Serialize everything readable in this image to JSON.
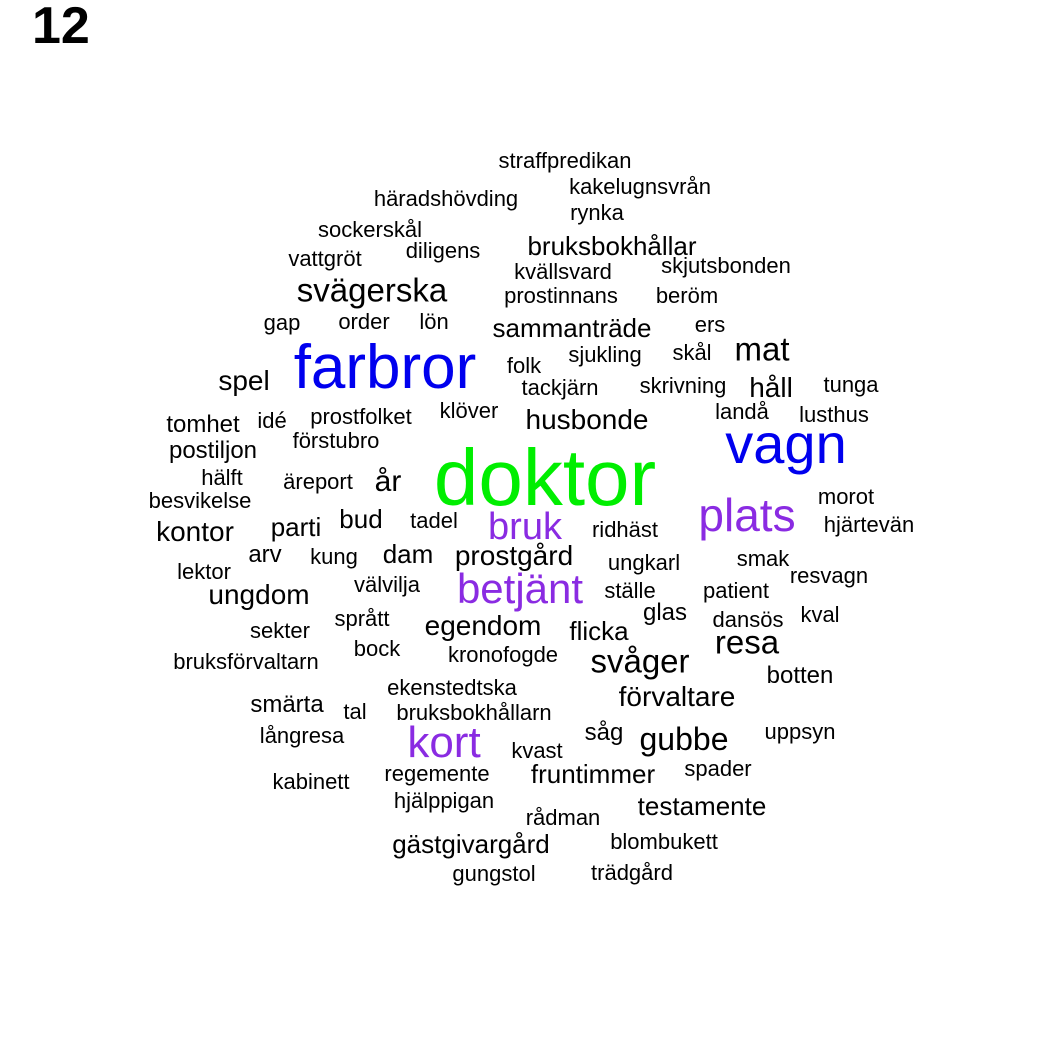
{
  "label": "12",
  "colors": {
    "top": "#00ee00",
    "second": "#0000ee",
    "third": "#8a2be2",
    "rest": "#000000"
  },
  "words": [
    {
      "text": "doktor",
      "tier": "top"
    },
    {
      "text": "farbror",
      "tier": "second"
    },
    {
      "text": "vagn",
      "tier": "second"
    },
    {
      "text": "plats",
      "tier": "third"
    },
    {
      "text": "betjänt",
      "tier": "third"
    },
    {
      "text": "kort",
      "tier": "third"
    },
    {
      "text": "bruk",
      "tier": "third"
    },
    {
      "text": "svägerska",
      "tier": "rest"
    },
    {
      "text": "mat",
      "tier": "rest"
    },
    {
      "text": "resa",
      "tier": "rest"
    },
    {
      "text": "svåger",
      "tier": "rest"
    },
    {
      "text": "husbonde",
      "tier": "rest"
    },
    {
      "text": "förvaltare",
      "tier": "rest"
    },
    {
      "text": "gubbe",
      "tier": "rest"
    },
    {
      "text": "egendom",
      "tier": "rest"
    },
    {
      "text": "prostgård",
      "tier": "rest"
    },
    {
      "text": "kontor",
      "tier": "rest"
    },
    {
      "text": "sammanträde",
      "tier": "rest"
    },
    {
      "text": "testamente",
      "tier": "rest"
    },
    {
      "text": "gästgivargård",
      "tier": "rest"
    },
    {
      "text": "ungdom",
      "tier": "rest"
    },
    {
      "text": "spel",
      "tier": "rest"
    },
    {
      "text": "år",
      "tier": "rest"
    },
    {
      "text": "håll",
      "tier": "rest"
    },
    {
      "text": "fruntimmer",
      "tier": "rest"
    },
    {
      "text": "bruksbokhållar",
      "tier": "rest"
    },
    {
      "text": "dam",
      "tier": "rest"
    },
    {
      "text": "bud",
      "tier": "rest"
    },
    {
      "text": "parti",
      "tier": "rest"
    },
    {
      "text": "flicka",
      "tier": "rest"
    },
    {
      "text": "straffpredikan",
      "tier": "rest"
    },
    {
      "text": "kakelugnsvrån",
      "tier": "rest"
    },
    {
      "text": "häradshövding",
      "tier": "rest"
    },
    {
      "text": "rynka",
      "tier": "rest"
    },
    {
      "text": "sockerskål",
      "tier": "rest"
    },
    {
      "text": "diligens",
      "tier": "rest"
    },
    {
      "text": "vattgröt",
      "tier": "rest"
    },
    {
      "text": "kvällsvard",
      "tier": "rest"
    },
    {
      "text": "skjutsbonden",
      "tier": "rest"
    },
    {
      "text": "prostinnans",
      "tier": "rest"
    },
    {
      "text": "beröm",
      "tier": "rest"
    },
    {
      "text": "gap",
      "tier": "rest"
    },
    {
      "text": "order",
      "tier": "rest"
    },
    {
      "text": "lön",
      "tier": "rest"
    },
    {
      "text": "ers",
      "tier": "rest"
    },
    {
      "text": "sjukling",
      "tier": "rest"
    },
    {
      "text": "skål",
      "tier": "rest"
    },
    {
      "text": "folk",
      "tier": "rest"
    },
    {
      "text": "tackjärn",
      "tier": "rest"
    },
    {
      "text": "skrivning",
      "tier": "rest"
    },
    {
      "text": "tunga",
      "tier": "rest"
    },
    {
      "text": "landå",
      "tier": "rest"
    },
    {
      "text": "lusthus",
      "tier": "rest"
    },
    {
      "text": "klöver",
      "tier": "rest"
    },
    {
      "text": "tomhet",
      "tier": "rest"
    },
    {
      "text": "idé",
      "tier": "rest"
    },
    {
      "text": "prostfolket",
      "tier": "rest"
    },
    {
      "text": "förstubro",
      "tier": "rest"
    },
    {
      "text": "postiljon",
      "tier": "rest"
    },
    {
      "text": "hälft",
      "tier": "rest"
    },
    {
      "text": "äreport",
      "tier": "rest"
    },
    {
      "text": "besvikelse",
      "tier": "rest"
    },
    {
      "text": "morot",
      "tier": "rest"
    },
    {
      "text": "hjärtevän",
      "tier": "rest"
    },
    {
      "text": "tadel",
      "tier": "rest"
    },
    {
      "text": "ridhäst",
      "tier": "rest"
    },
    {
      "text": "arv",
      "tier": "rest"
    },
    {
      "text": "kung",
      "tier": "rest"
    },
    {
      "text": "ungkarl",
      "tier": "rest"
    },
    {
      "text": "smak",
      "tier": "rest"
    },
    {
      "text": "lektor",
      "tier": "rest"
    },
    {
      "text": "välvilja",
      "tier": "rest"
    },
    {
      "text": "resvagn",
      "tier": "rest"
    },
    {
      "text": "ställe",
      "tier": "rest"
    },
    {
      "text": "patient",
      "tier": "rest"
    },
    {
      "text": "glas",
      "tier": "rest"
    },
    {
      "text": "kval",
      "tier": "rest"
    },
    {
      "text": "sprått",
      "tier": "rest"
    },
    {
      "text": "dansös",
      "tier": "rest"
    },
    {
      "text": "sekter",
      "tier": "rest"
    },
    {
      "text": "bock",
      "tier": "rest"
    },
    {
      "text": "kronofogde",
      "tier": "rest"
    },
    {
      "text": "bruksförvaltarn",
      "tier": "rest"
    },
    {
      "text": "botten",
      "tier": "rest"
    },
    {
      "text": "ekenstedtska",
      "tier": "rest"
    },
    {
      "text": "smärta",
      "tier": "rest"
    },
    {
      "text": "tal",
      "tier": "rest"
    },
    {
      "text": "bruksbokhållarn",
      "tier": "rest"
    },
    {
      "text": "såg",
      "tier": "rest"
    },
    {
      "text": "uppsyn",
      "tier": "rest"
    },
    {
      "text": "långresa",
      "tier": "rest"
    },
    {
      "text": "kvast",
      "tier": "rest"
    },
    {
      "text": "regemente",
      "tier": "rest"
    },
    {
      "text": "spader",
      "tier": "rest"
    },
    {
      "text": "kabinett",
      "tier": "rest"
    },
    {
      "text": "hjälppigan",
      "tier": "rest"
    },
    {
      "text": "rådman",
      "tier": "rest"
    },
    {
      "text": "blombukett",
      "tier": "rest"
    },
    {
      "text": "gungstol",
      "tier": "rest"
    },
    {
      "text": "trädgård",
      "tier": "rest"
    }
  ]
}
